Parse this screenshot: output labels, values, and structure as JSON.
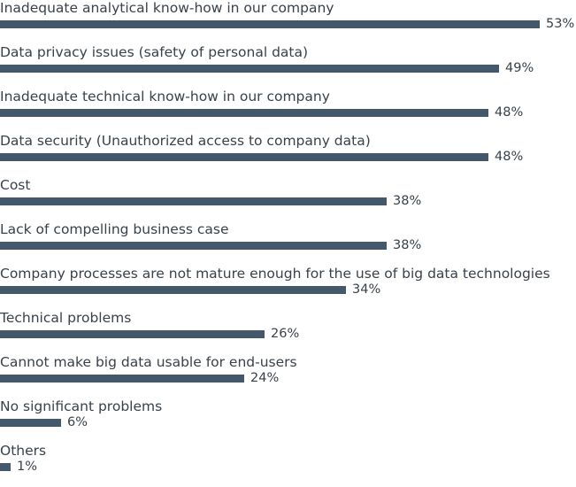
{
  "chart_data": {
    "type": "bar",
    "orientation": "horizontal",
    "title": "",
    "xlabel": "",
    "ylabel": "",
    "unit": "%",
    "xlim": [
      0,
      53
    ],
    "grid": false,
    "legend": null,
    "categories": [
      "Inadequate analytical know-how in our company",
      "Data privacy issues (safety of personal data)",
      "Inadequate technical know-how in our company",
      "Data security (Unauthorized access to company data)",
      "Cost",
      "Lack of compelling business case",
      "Company processes are not mature enough for the use of big data technologies",
      "Technical problems",
      "Cannot make big data usable for end-users",
      "No significant problems",
      "Others"
    ],
    "values": [
      53,
      49,
      48,
      48,
      38,
      38,
      34,
      26,
      24,
      6,
      1
    ],
    "value_labels": [
      "53%",
      "49%",
      "48%",
      "48%",
      "38%",
      "38%",
      "34%",
      "26%",
      "24%",
      "6%",
      "1%"
    ],
    "bar_color": "#44586b"
  }
}
